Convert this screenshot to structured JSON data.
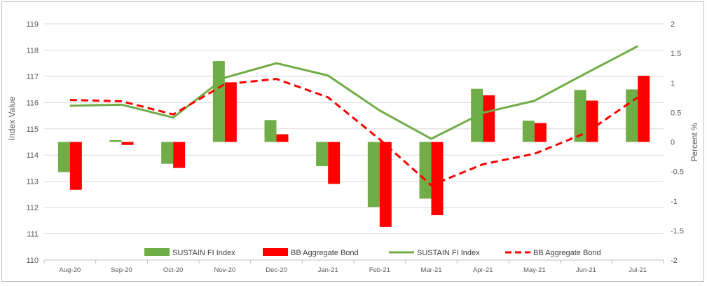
{
  "chart_data": {
    "type": "bar-line-combo",
    "categories": [
      "Aug-20",
      "Sep-20",
      "Oct-20",
      "Nov-20",
      "Dec-20",
      "Jan-21",
      "Feb-21",
      "Mar-21",
      "Apr-21",
      "May-21",
      "Jun-21",
      "Jul-21"
    ],
    "ylabel_left": "Index Value",
    "ylabel_right": "Percent %",
    "ylim_left": [
      110,
      119
    ],
    "ylim_right": [
      -2,
      2
    ],
    "yticks_left": [
      110,
      111,
      112,
      113,
      114,
      115,
      116,
      117,
      118,
      119
    ],
    "yticks_right": [
      -2,
      -1.5,
      -1,
      -0.5,
      0,
      0.5,
      1,
      1.5,
      2
    ],
    "grid": true,
    "legend_position": "bottom",
    "colors": {
      "sustain": "#70ad47",
      "bb": "#ff0000"
    },
    "bar_series": [
      {
        "name": "SUSTAIN FI Index",
        "axis": "right",
        "values": [
          -0.51,
          0.03,
          -0.37,
          1.37,
          0.37,
          -0.41,
          -1.1,
          -0.96,
          0.9,
          0.36,
          0.88,
          0.89
        ]
      },
      {
        "name": "BB Aggregate Bond",
        "axis": "right",
        "values": [
          -0.81,
          -0.05,
          -0.44,
          1.01,
          0.13,
          -0.71,
          -1.44,
          -1.24,
          0.79,
          0.32,
          0.7,
          1.12
        ]
      }
    ],
    "line_series": [
      {
        "name": "SUSTAIN FI Index",
        "axis": "left",
        "style": "solid",
        "values": [
          115.88,
          115.92,
          115.43,
          116.95,
          117.5,
          117.03,
          115.7,
          114.62,
          115.61,
          116.07,
          117.12,
          118.15
        ]
      },
      {
        "name": "BB Aggregate Bond",
        "axis": "left",
        "style": "dashed",
        "values": [
          116.1,
          116.05,
          115.55,
          116.7,
          116.9,
          116.2,
          114.6,
          112.85,
          113.65,
          114.05,
          114.85,
          116.2
        ]
      }
    ],
    "legend": [
      {
        "label": "SUSTAIN FI Index",
        "kind": "bar",
        "color": "#70ad47"
      },
      {
        "label": "BB Aggregate Bond",
        "kind": "bar",
        "color": "#ff0000"
      },
      {
        "label": "SUSTAIN FI Index",
        "kind": "line",
        "color": "#70ad47"
      },
      {
        "label": "BB Aggregate Bond",
        "kind": "dashed-line",
        "color": "#ff0000"
      }
    ]
  }
}
